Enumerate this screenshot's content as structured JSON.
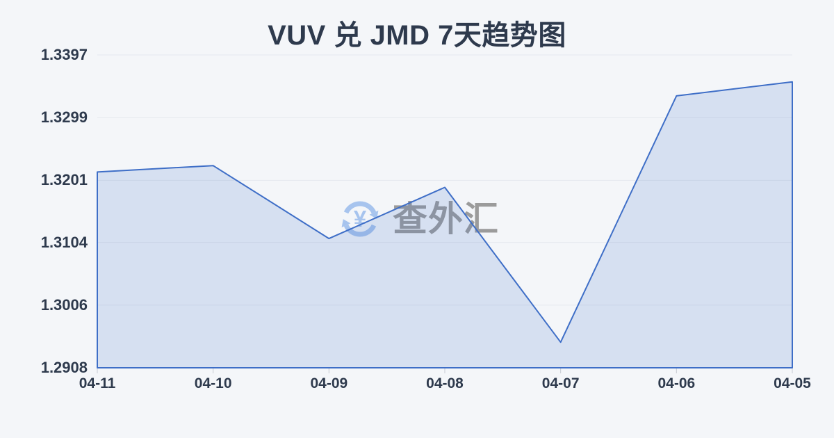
{
  "title": "VUV 兑 JMD 7天趋势图",
  "watermark": {
    "text": "查外汇",
    "icon": "currency-exchange-icon"
  },
  "chart_data": {
    "type": "area",
    "title": "VUV 兑 JMD 7天趋势图",
    "categories": [
      "04-11",
      "04-10",
      "04-09",
      "04-08",
      "04-07",
      "04-06",
      "04-05"
    ],
    "values": [
      1.3214,
      1.3224,
      1.311,
      1.319,
      1.2948,
      1.3333,
      1.3355
    ],
    "xlabel": "",
    "ylabel": "",
    "ylim": [
      1.2908,
      1.3397
    ],
    "yticks": [
      1.3397,
      1.3299,
      1.3201,
      1.3104,
      1.3006,
      1.2908
    ],
    "ytick_labels": [
      "1.3397",
      "1.3299",
      "1.3201",
      "1.3104",
      "1.3006",
      "1.2908"
    ],
    "grid": "horizontal",
    "legend": "none",
    "colors": {
      "background": "#f4f6f9",
      "text": "#2e3a4d",
      "line": "#3e6ec7",
      "fill": "rgba(62,110,199,0.16)",
      "grid": "#e5e8ee",
      "tick": "#c6cad2",
      "watermark_icon": "#a7c4ee",
      "watermark_text": "#9b9b9b"
    }
  }
}
